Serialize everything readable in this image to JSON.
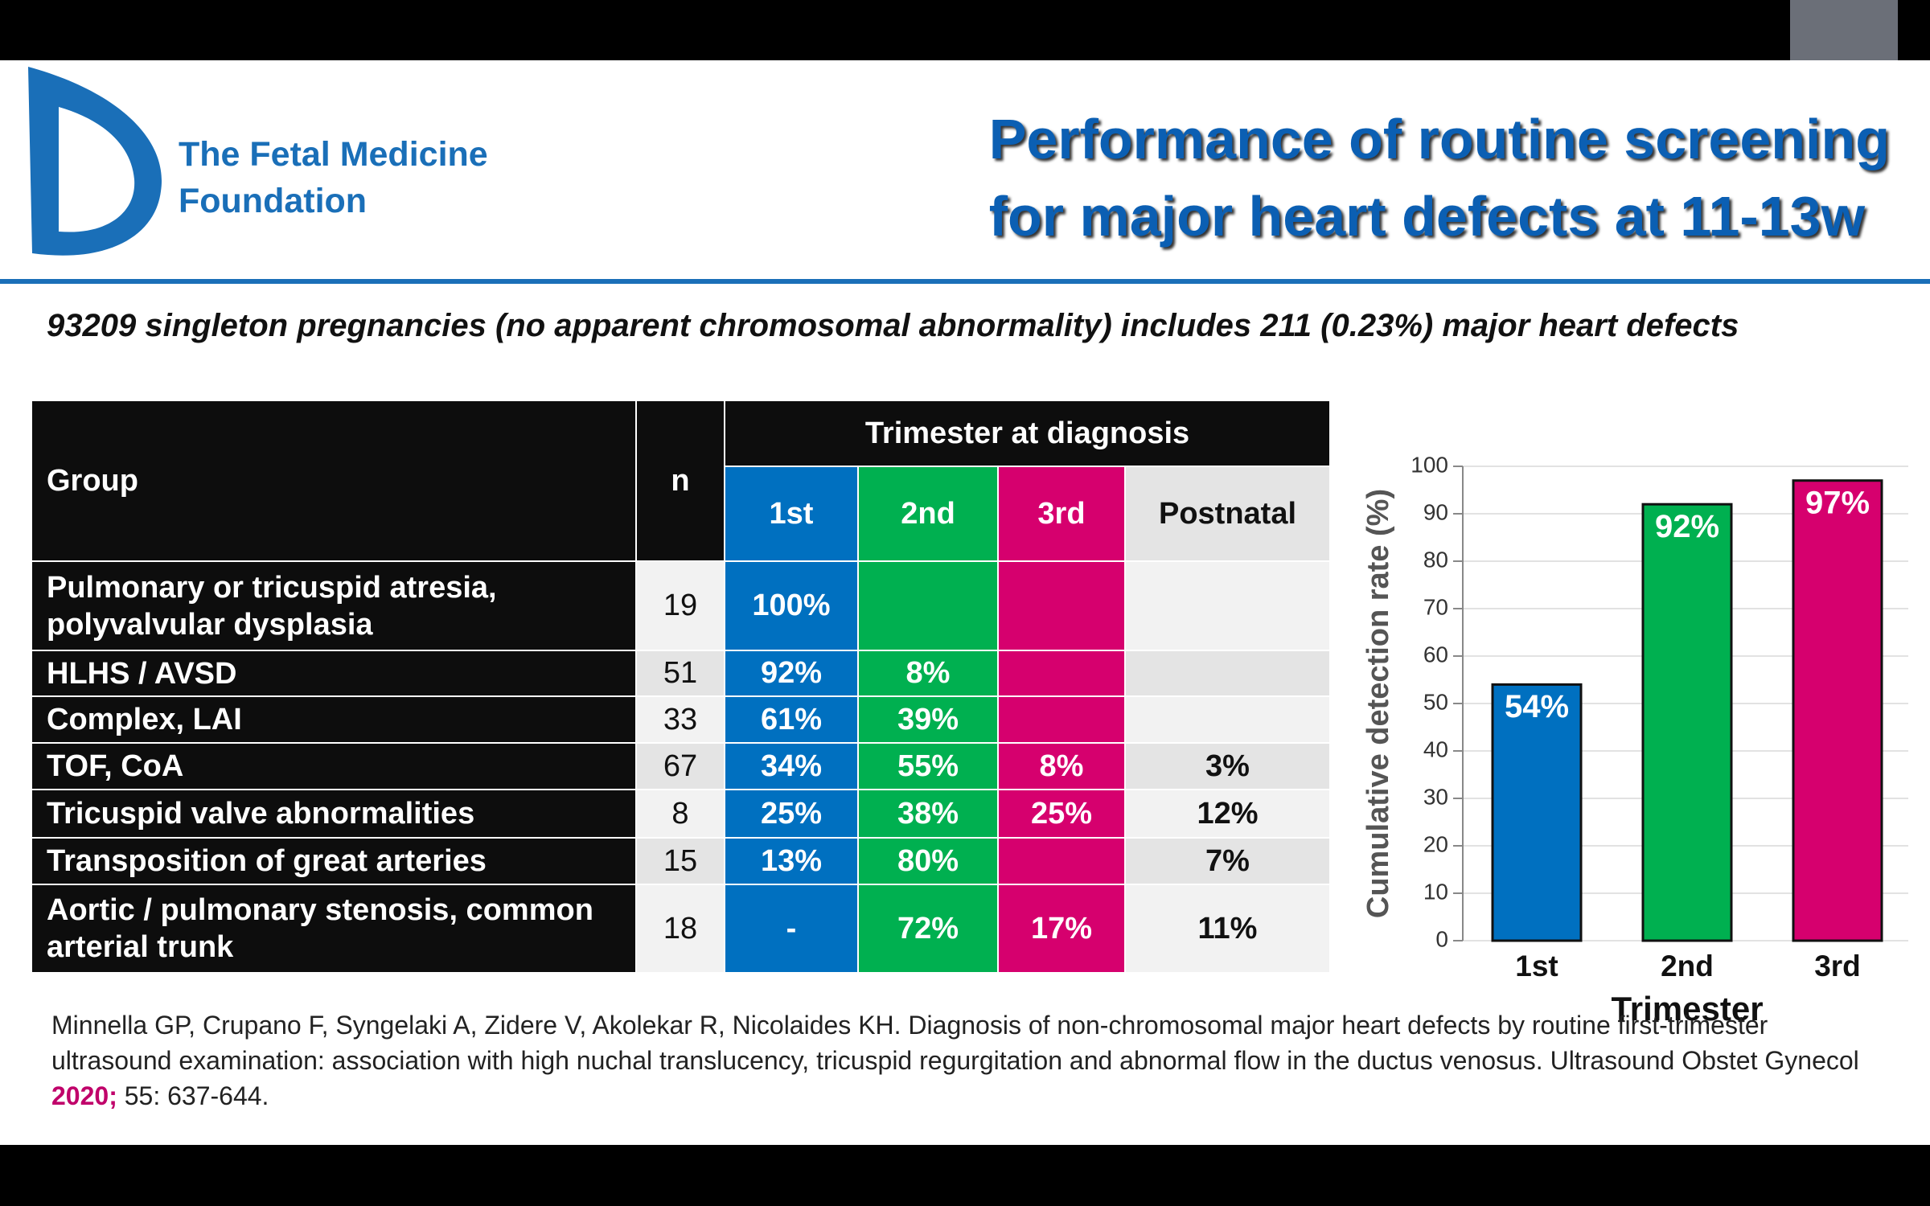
{
  "header": {
    "org_line1": "The Fetal Medicine",
    "org_line2": "Foundation",
    "title_line1": "Performance of routine screening",
    "title_line2": "for major heart defects at 11-13w"
  },
  "subtitle": "93209 singleton pregnancies (no apparent chromosomal abnormality) includes 211 (0.23%) major heart defects",
  "table": {
    "columns": [
      "Group",
      "n",
      "Trimester at diagnosis"
    ],
    "subcolumns": [
      "1st",
      "2nd",
      "3rd",
      "Postnatal"
    ],
    "rows": [
      [
        "Pulmonary or tricuspid atresia, polyvalvular dysplasia",
        "19",
        "100%",
        null,
        null,
        null
      ],
      [
        "HLHS / AVSD",
        "51",
        "92%",
        "8%",
        null,
        null
      ],
      [
        "Complex, LAI",
        "33",
        "61%",
        "39%",
        null,
        null
      ],
      [
        "TOF, CoA",
        "67",
        "34%",
        "55%",
        "8%",
        "3%"
      ],
      [
        "Tricuspid valve abnormalities",
        "8",
        "25%",
        "38%",
        "25%",
        "12%"
      ],
      [
        "Transposition of great arteries",
        "15",
        "13%",
        "80%",
        null,
        "7%"
      ],
      [
        "Aortic / pulmonary stenosis, common arterial trunk",
        "18",
        "-",
        "72%",
        "17%",
        "11%"
      ]
    ]
  },
  "chart_data": {
    "type": "bar",
    "categories": [
      "1st",
      "2nd",
      "3rd"
    ],
    "values": [
      54,
      92,
      97
    ],
    "value_labels": [
      "54%",
      "92%",
      "97%"
    ],
    "colors": [
      "#0070c0",
      "#00b050",
      "#d6006e"
    ],
    "y_label": "Cumulative detection rate (%)",
    "x_label": "Trimester",
    "ylim": [
      0,
      100
    ],
    "yticks": [
      0,
      10,
      20,
      30,
      40,
      50,
      60,
      70,
      80,
      90,
      100
    ],
    "grid": true
  },
  "citation": {
    "text": "Minnella GP, Crupano F, Syngelaki A, Zidere V,  Akolekar R, Nicolaides KH. Diagnosis of non-chromosomal major heart defects by routine first-trimester ultrasound examination: association with high nuchal translucency, tricuspid regurgitation and abnormal flow in the ductus venosus. Ultrasound Obstet Gynecol",
    "year": "2020;",
    "pages": "55: 637-644."
  }
}
